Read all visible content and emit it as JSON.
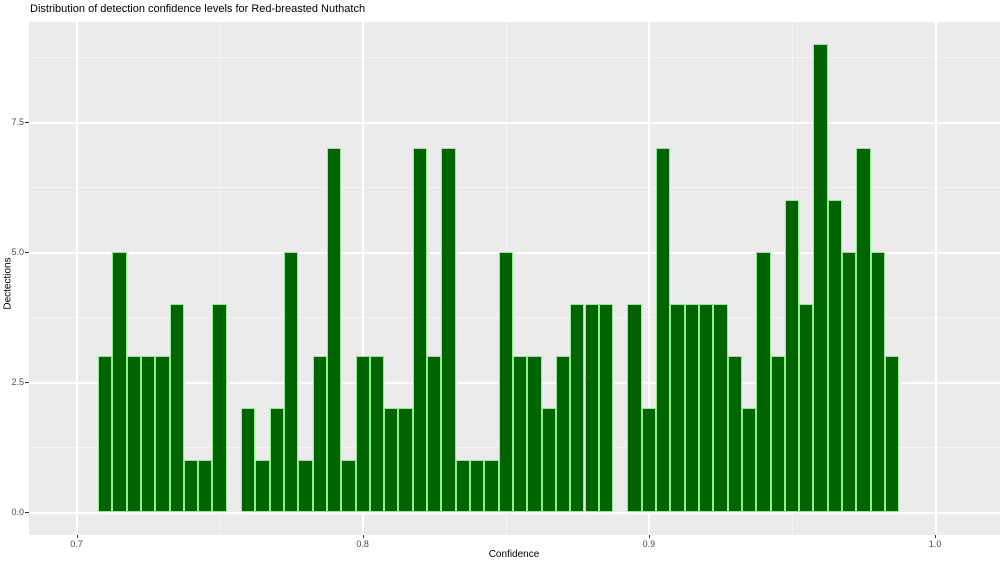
{
  "chart_data": {
    "type": "bar",
    "subtype": "histogram",
    "title": "Distribution of detection confidence levels for Red-breasted Nuthatch",
    "xlabel": "Confidence",
    "ylabel": "Dectections",
    "x_ticks": [
      0.7,
      0.8,
      0.9,
      1.0
    ],
    "x_tick_labels": [
      "0.7",
      "0.8",
      "0.9",
      "1.0"
    ],
    "y_ticks": [
      0.0,
      2.5,
      5.0,
      7.5
    ],
    "y_tick_labels": [
      "0.0",
      "2.5",
      "5.0",
      "7.5"
    ],
    "x_minor_ticks": [
      0.75,
      0.85,
      0.95
    ],
    "y_minor_ticks": [
      1.25,
      3.75,
      6.25,
      8.75
    ],
    "xlim": [
      0.6835,
      1.023
    ],
    "ylim": [
      -0.45,
      9.45
    ],
    "grid": true,
    "legend": "none",
    "binwidth": 0.005,
    "bin_centers": [
      0.71,
      0.715,
      0.72,
      0.725,
      0.73,
      0.735,
      0.74,
      0.745,
      0.75,
      0.755,
      0.76,
      0.765,
      0.77,
      0.775,
      0.78,
      0.785,
      0.79,
      0.795,
      0.8,
      0.805,
      0.81,
      0.815,
      0.82,
      0.825,
      0.83,
      0.835,
      0.84,
      0.845,
      0.85,
      0.855,
      0.86,
      0.865,
      0.87,
      0.875,
      0.88,
      0.885,
      0.89,
      0.895,
      0.9,
      0.905,
      0.91,
      0.915,
      0.92,
      0.925,
      0.93,
      0.935,
      0.94,
      0.945,
      0.95,
      0.955,
      0.96,
      0.965,
      0.97,
      0.975,
      0.98,
      0.985
    ],
    "counts": [
      3,
      5,
      3,
      3,
      3,
      4,
      1,
      1,
      4,
      0,
      2,
      1,
      2,
      5,
      1,
      3,
      7,
      1,
      3,
      3,
      2,
      2,
      7,
      3,
      7,
      1,
      1,
      1,
      5,
      3,
      3,
      2,
      3,
      4,
      4,
      4,
      0,
      4,
      2,
      7,
      4,
      4,
      4,
      4,
      3,
      2,
      5,
      3,
      6,
      4,
      9,
      6,
      5,
      7,
      5,
      3
    ],
    "colors": {
      "bar_fill": "#006400",
      "bar_border": "#90EE90",
      "panel_bg": "#EBEBEB",
      "grid": "#FFFFFF",
      "tick_label": "#4D4D4D",
      "title_text": "#000000"
    }
  }
}
